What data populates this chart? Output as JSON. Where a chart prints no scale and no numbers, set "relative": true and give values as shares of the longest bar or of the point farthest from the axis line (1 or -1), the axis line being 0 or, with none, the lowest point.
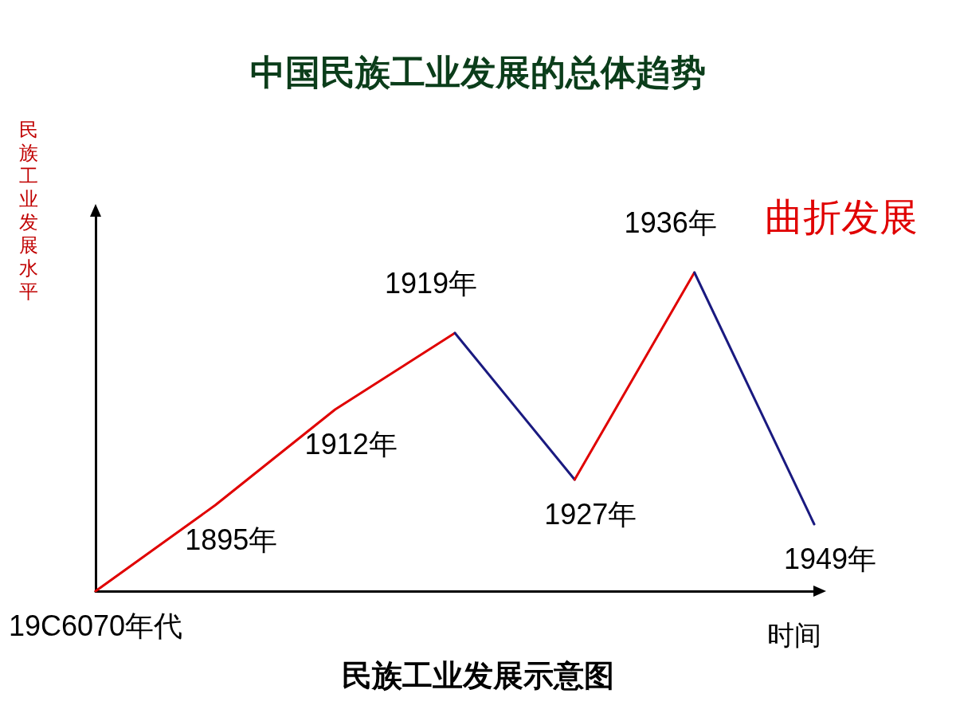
{
  "chart_data": {
    "type": "line",
    "title": "中国民族工业发展的总体趋势",
    "xlabel": "时间",
    "ylabel": "民族工业发展水平",
    "relative": true,
    "marker": "none",
    "grid": false,
    "categories": [
      "19C6070年代",
      "1895年",
      "1912年",
      "1919年",
      "1927年",
      "1936年",
      "1949年"
    ],
    "series": [
      {
        "color": "#e00000",
        "values": [
          0,
          0.27,
          0.57,
          0.81,
          null,
          null,
          null
        ]
      },
      {
        "color": "#1a1a80",
        "values": [
          null,
          null,
          null,
          0.81,
          0.35,
          null,
          null
        ]
      },
      {
        "color": "#e00000",
        "values": [
          null,
          null,
          null,
          null,
          0.35,
          1,
          null
        ]
      },
      {
        "color": "#1a1a80",
        "values": [
          null,
          null,
          null,
          null,
          null,
          1,
          0.21
        ]
      }
    ],
    "annotations": [
      "曲折发展",
      "民族工业发展示意图"
    ]
  }
}
